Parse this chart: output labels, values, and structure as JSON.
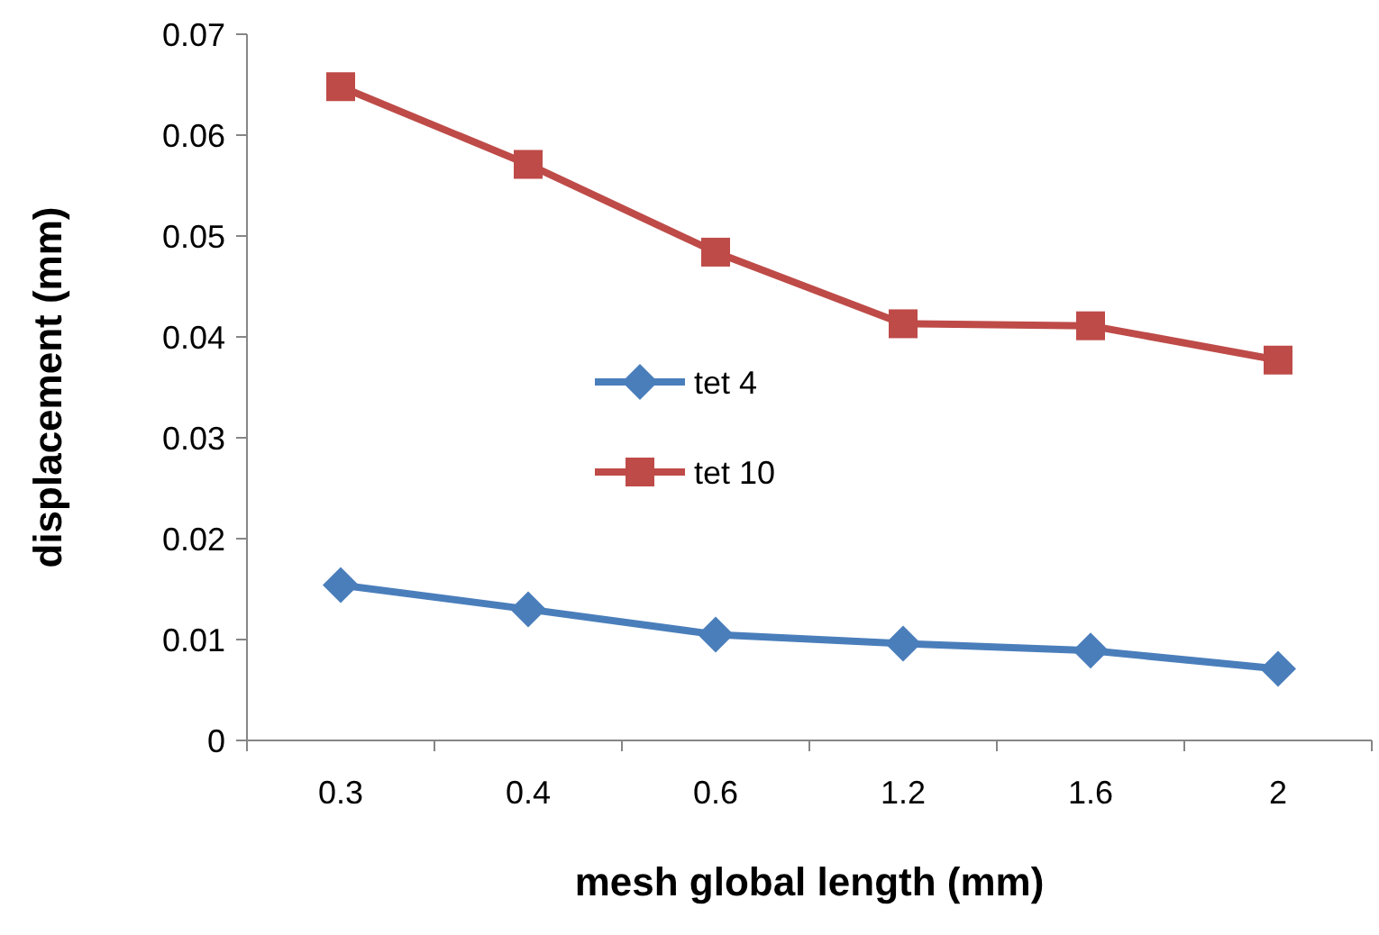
{
  "chart_data": {
    "type": "line",
    "xlabel": "mesh global length (mm)",
    "ylabel": "displacement (mm)",
    "categories": [
      "0.3",
      "0.4",
      "0.6",
      "1.2",
      "1.6",
      "2"
    ],
    "series": [
      {
        "name": "tet 4",
        "color": "#4a7ebb",
        "marker": "diamond",
        "values": [
          0.0154,
          0.013,
          0.0105,
          0.0096,
          0.0089,
          0.0071
        ]
      },
      {
        "name": "tet 10",
        "color": "#be4b48",
        "marker": "square",
        "values": [
          0.0648,
          0.0571,
          0.0484,
          0.0413,
          0.0411,
          0.0377
        ]
      }
    ],
    "ylim": [
      0,
      0.07
    ],
    "yticks": [
      0,
      0.01,
      0.02,
      0.03,
      0.04,
      0.05,
      0.06,
      0.07
    ],
    "grid": false,
    "legend": "center"
  }
}
